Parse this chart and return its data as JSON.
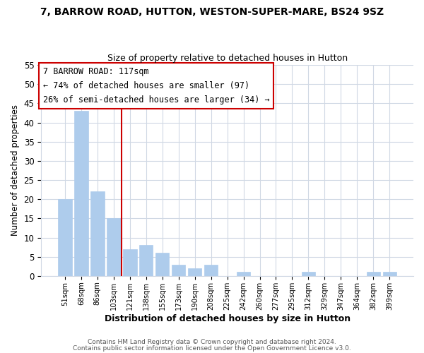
{
  "title": "7, BARROW ROAD, HUTTON, WESTON-SUPER-MARE, BS24 9SZ",
  "subtitle": "Size of property relative to detached houses in Hutton",
  "xlabel": "Distribution of detached houses by size in Hutton",
  "ylabel": "Number of detached properties",
  "bar_color": "#aeccec",
  "bar_edge_color": "#aeccec",
  "categories": [
    "51sqm",
    "68sqm",
    "86sqm",
    "103sqm",
    "121sqm",
    "138sqm",
    "155sqm",
    "173sqm",
    "190sqm",
    "208sqm",
    "225sqm",
    "242sqm",
    "260sqm",
    "277sqm",
    "295sqm",
    "312sqm",
    "329sqm",
    "347sqm",
    "364sqm",
    "382sqm",
    "399sqm"
  ],
  "values": [
    20,
    43,
    22,
    15,
    7,
    8,
    6,
    3,
    2,
    3,
    0,
    1,
    0,
    0,
    0,
    1,
    0,
    0,
    0,
    1,
    1
  ],
  "ylim": [
    0,
    55
  ],
  "yticks": [
    0,
    5,
    10,
    15,
    20,
    25,
    30,
    35,
    40,
    45,
    50,
    55
  ],
  "vline_color": "#cc0000",
  "vline_index": 4,
  "annotation_title": "7 BARROW ROAD: 117sqm",
  "annotation_line1": "← 74% of detached houses are smaller (97)",
  "annotation_line2": "26% of semi-detached houses are larger (34) →",
  "footer1": "Contains HM Land Registry data © Crown copyright and database right 2024.",
  "footer2": "Contains public sector information licensed under the Open Government Licence v3.0.",
  "background_color": "#ffffff",
  "grid_color": "#d0d8e4"
}
